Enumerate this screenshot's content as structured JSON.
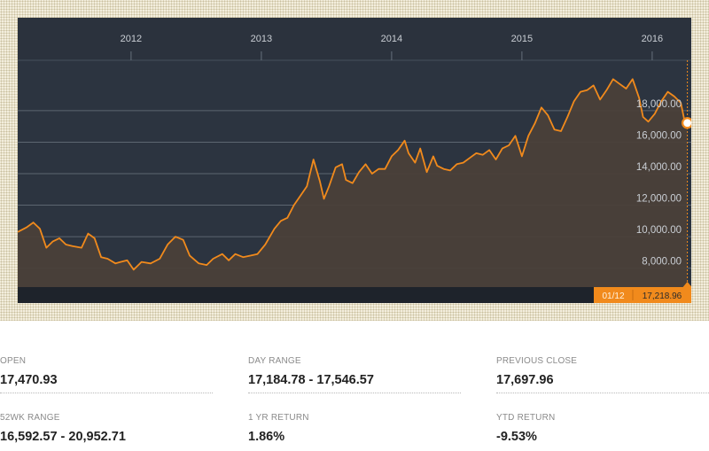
{
  "chart_data": {
    "type": "area",
    "x_ticks": [
      "2012",
      "2013",
      "2014",
      "2015",
      "2016"
    ],
    "y_ticks": [
      "8,000.00",
      "10,000.00",
      "12,000.00",
      "14,000.00",
      "16,000.00",
      "18,000.00"
    ],
    "ylim": [
      6800,
      21200
    ],
    "xlim": [
      2011.13,
      2016.3
    ],
    "grid": true,
    "line_color": "#f18a1c",
    "series": [
      {
        "points": [
          [
            2011.13,
            10300
          ],
          [
            2011.2,
            10600
          ],
          [
            2011.25,
            10900
          ],
          [
            2011.3,
            10500
          ],
          [
            2011.35,
            9300
          ],
          [
            2011.4,
            9700
          ],
          [
            2011.45,
            9900
          ],
          [
            2011.5,
            9500
          ],
          [
            2011.55,
            9400
          ],
          [
            2011.62,
            9300
          ],
          [
            2011.67,
            10200
          ],
          [
            2011.72,
            9900
          ],
          [
            2011.77,
            8700
          ],
          [
            2011.82,
            8600
          ],
          [
            2011.88,
            8300
          ],
          [
            2011.92,
            8400
          ],
          [
            2011.97,
            8500
          ],
          [
            2012.02,
            7900
          ],
          [
            2012.08,
            8400
          ],
          [
            2012.15,
            8300
          ],
          [
            2012.22,
            8600
          ],
          [
            2012.28,
            9500
          ],
          [
            2012.34,
            10000
          ],
          [
            2012.4,
            9800
          ],
          [
            2012.45,
            8800
          ],
          [
            2012.52,
            8300
          ],
          [
            2012.58,
            8200
          ],
          [
            2012.63,
            8600
          ],
          [
            2012.7,
            8900
          ],
          [
            2012.75,
            8500
          ],
          [
            2012.8,
            8900
          ],
          [
            2012.86,
            8700
          ],
          [
            2012.92,
            8800
          ],
          [
            2012.97,
            8900
          ],
          [
            2013.03,
            9500
          ],
          [
            2013.1,
            10500
          ],
          [
            2013.15,
            11000
          ],
          [
            2013.2,
            11200
          ],
          [
            2013.25,
            12000
          ],
          [
            2013.3,
            12600
          ],
          [
            2013.35,
            13200
          ],
          [
            2013.4,
            14900
          ],
          [
            2013.45,
            13500
          ],
          [
            2013.48,
            12400
          ],
          [
            2013.52,
            13200
          ],
          [
            2013.57,
            14400
          ],
          [
            2013.62,
            14600
          ],
          [
            2013.65,
            13600
          ],
          [
            2013.7,
            13400
          ],
          [
            2013.75,
            14100
          ],
          [
            2013.8,
            14600
          ],
          [
            2013.85,
            14000
          ],
          [
            2013.9,
            14300
          ],
          [
            2013.95,
            14300
          ],
          [
            2014.0,
            15100
          ],
          [
            2014.05,
            15500
          ],
          [
            2014.1,
            16100
          ],
          [
            2014.13,
            15300
          ],
          [
            2014.18,
            14700
          ],
          [
            2014.22,
            15600
          ],
          [
            2014.27,
            14100
          ],
          [
            2014.32,
            15100
          ],
          [
            2014.35,
            14500
          ],
          [
            2014.4,
            14300
          ],
          [
            2014.45,
            14200
          ],
          [
            2014.5,
            14600
          ],
          [
            2014.55,
            14700
          ],
          [
            2014.6,
            15000
          ],
          [
            2014.65,
            15300
          ],
          [
            2014.7,
            15200
          ],
          [
            2014.75,
            15500
          ],
          [
            2014.8,
            14900
          ],
          [
            2014.85,
            15600
          ],
          [
            2014.9,
            15800
          ],
          [
            2014.95,
            16400
          ],
          [
            2015.0,
            15100
          ],
          [
            2015.05,
            16400
          ],
          [
            2015.1,
            17200
          ],
          [
            2015.15,
            18200
          ],
          [
            2015.2,
            17700
          ],
          [
            2015.25,
            16800
          ],
          [
            2015.3,
            16700
          ],
          [
            2015.35,
            17600
          ],
          [
            2015.4,
            18600
          ],
          [
            2015.45,
            19200
          ],
          [
            2015.5,
            19300
          ],
          [
            2015.55,
            19600
          ],
          [
            2015.6,
            18700
          ],
          [
            2015.65,
            19300
          ],
          [
            2015.7,
            20000
          ],
          [
            2015.75,
            19700
          ],
          [
            2015.8,
            19400
          ],
          [
            2015.85,
            20000
          ],
          [
            2015.9,
            18800
          ],
          [
            2015.93,
            17600
          ],
          [
            2015.97,
            17300
          ],
          [
            2016.02,
            17800
          ],
          [
            2016.07,
            18600
          ],
          [
            2016.12,
            19200
          ],
          [
            2016.17,
            18900
          ],
          [
            2016.22,
            18500
          ],
          [
            2016.25,
            17300
          ],
          [
            2016.27,
            17219
          ]
        ]
      }
    ],
    "marker": {
      "x": 2016.27,
      "y": 17219,
      "date": "01/12",
      "value": "17,218.96"
    }
  },
  "stats": [
    {
      "label": "OPEN",
      "value": "17,470.93"
    },
    {
      "label": "DAY RANGE",
      "value": "17,184.78 - 17,546.57"
    },
    {
      "label": "PREVIOUS CLOSE",
      "value": "17,697.96"
    },
    {
      "label": "52WK RANGE",
      "value": "16,592.57 - 20,952.71"
    },
    {
      "label": "1 YR RETURN",
      "value": "1.86%"
    },
    {
      "label": "YTD RETURN",
      "value": "-9.53%"
    }
  ]
}
